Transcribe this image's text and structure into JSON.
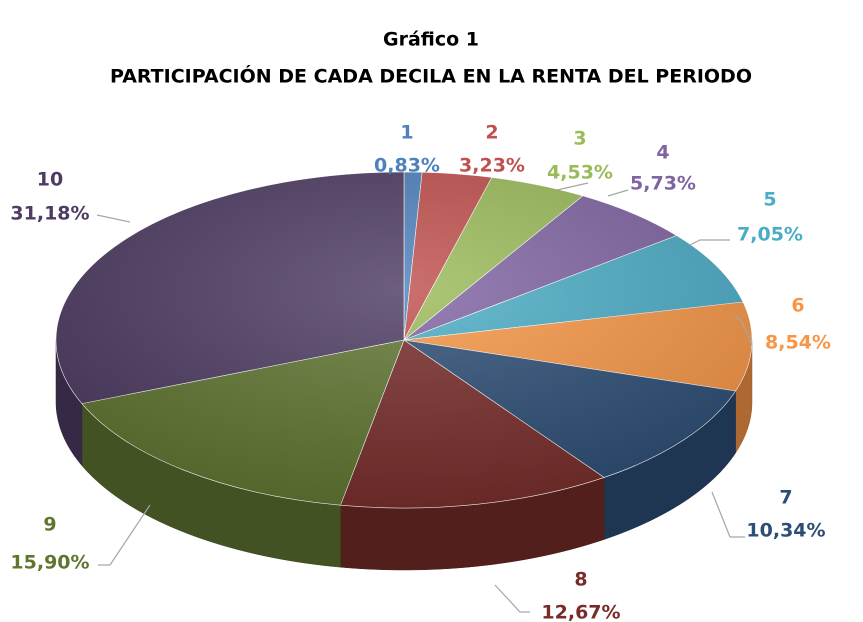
{
  "chart_data": {
    "type": "pie",
    "title": "Gráfico 1",
    "subtitle": "PARTICIPACIÓN DE CADA DECILA EN LA RENTA DEL PERIODO",
    "categories": [
      "1",
      "2",
      "3",
      "4",
      "5",
      "6",
      "7",
      "8",
      "9",
      "10"
    ],
    "values": [
      0.83,
      3.23,
      4.53,
      5.73,
      7.05,
      8.54,
      10.34,
      12.67,
      15.9,
      31.18
    ],
    "value_labels": [
      "0,83%",
      "3,23%",
      "4,53%",
      "5,73%",
      "7,05%",
      "8,54%",
      "10,34%",
      "12,67%",
      "15,90%",
      "31,18%"
    ],
    "colors": [
      "#4f81bd",
      "#c0504d",
      "#9bbb59",
      "#8064a2",
      "#4bacc6",
      "#f79646",
      "#2c4d75",
      "#772c2a",
      "#5f7530",
      "#4d3b62"
    ]
  }
}
